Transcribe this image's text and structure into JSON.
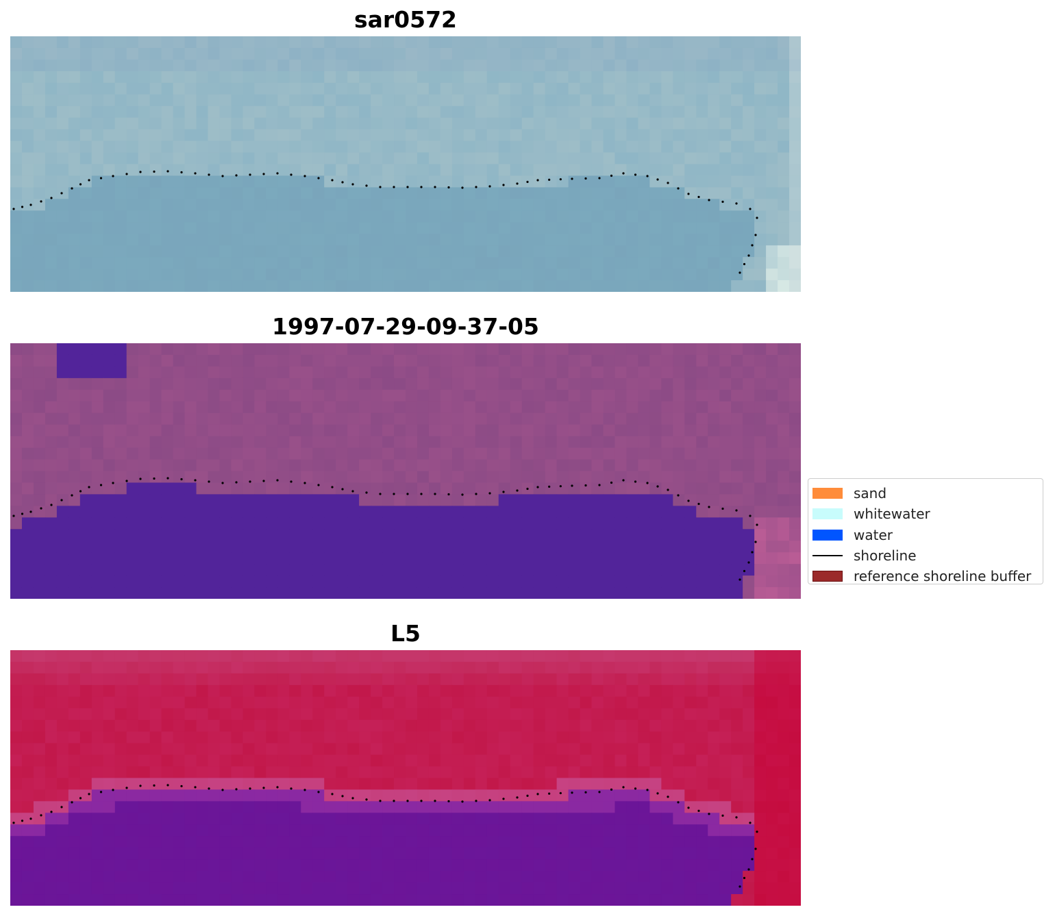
{
  "panels": [
    {
      "title": "sar0572",
      "style": "false-color-teal",
      "base_color": "#7ba9bd",
      "upper_color": "#8fb6c6",
      "edge_color": "#dfeee8"
    },
    {
      "title": "1997-07-29-09-37-05",
      "style": "classified-purple",
      "base_color": "#8c4b86",
      "water_color": "#52249a",
      "edge_color": "#c25f98"
    },
    {
      "title": "L5",
      "style": "false-color-red",
      "base_color": "#c2184a",
      "water_color": "#6a1699",
      "edge_color": "#c80034"
    }
  ],
  "legend": {
    "items": [
      {
        "label": "sand",
        "kind": "patch",
        "color": "#ff8c3a"
      },
      {
        "label": "whitewater",
        "kind": "patch",
        "color": "#c8fcfc"
      },
      {
        "label": "water",
        "kind": "patch",
        "color": "#0055ff"
      },
      {
        "label": "shoreline",
        "kind": "line",
        "color": "#000000"
      },
      {
        "label": "reference shoreline buffer",
        "kind": "patch",
        "color": "#9b2a2a",
        "border": "#6b1010"
      }
    ]
  }
}
